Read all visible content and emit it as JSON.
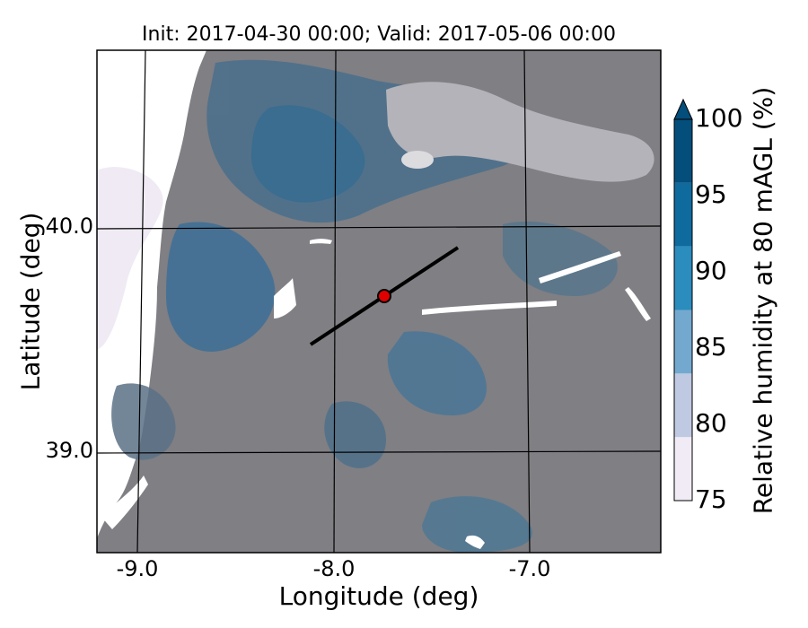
{
  "title": "Init: 2017-04-30 00:00; Valid: 2017-05-06 00:00",
  "xlabel": "Longitude (deg)",
  "ylabel": "Latitude (deg)",
  "colorbar": {
    "label": "Relative humidity at 80 mAGL (%)",
    "ticks": [
      "75",
      "80",
      "85",
      "90",
      "95",
      "100"
    ],
    "colors": [
      "#f0ebf4",
      "#bfc9e2",
      "#74a9cf",
      "#2b8cbe",
      "#0f6a9e",
      "#034e7b"
    ],
    "extend": "max"
  },
  "x_ticks": [
    "-9.0",
    "-8.0",
    "-7.0"
  ],
  "y_ticks": [
    "40.0",
    "39.0"
  ],
  "map": {
    "terrain_color": "#7f7f84",
    "point_marker": {
      "lon": -7.75,
      "lat": 39.7,
      "color": "#e00000"
    },
    "cross_section_line": {
      "start": [
        -8.1,
        39.5
      ],
      "end": [
        -7.38,
        39.92
      ]
    }
  }
}
